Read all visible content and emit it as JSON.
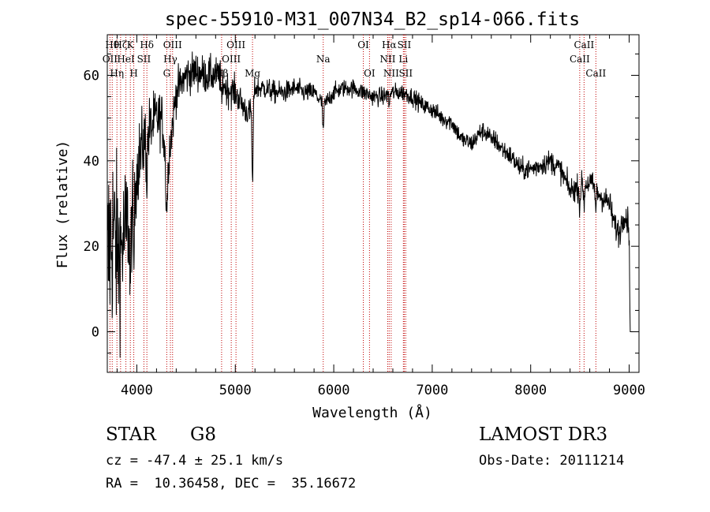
{
  "chart_data": {
    "type": "line",
    "title": "spec-55910-M31_007N34_B2_sp14-066.fits",
    "xlabel": "Wavelength (Å)",
    "ylabel": "Flux (relative)",
    "xlim": [
      3700,
      9100
    ],
    "ylim": [
      -9.5,
      69.5
    ],
    "x_ticks": [
      4000,
      5000,
      6000,
      7000,
      8000,
      9000
    ],
    "y_ticks": [
      0,
      20,
      40,
      60
    ],
    "x_tick_labels": [
      "4000",
      "5000",
      "6000",
      "7000",
      "8000",
      "9000"
    ],
    "y_tick_labels": [
      "0",
      "20",
      "40",
      "60"
    ],
    "grid": false,
    "series": [
      {
        "name": "flux",
        "anchors": [
          [
            3700,
            12
          ],
          [
            3720,
            20
          ],
          [
            3760,
            24
          ],
          [
            3800,
            18
          ],
          [
            3850,
            20
          ],
          [
            3900,
            25
          ],
          [
            3950,
            30
          ],
          [
            4000,
            38
          ],
          [
            4050,
            43
          ],
          [
            4100,
            46
          ],
          [
            4150,
            48
          ],
          [
            4200,
            50
          ],
          [
            4250,
            50
          ],
          [
            4300,
            43
          ],
          [
            4340,
            44
          ],
          [
            4400,
            56
          ],
          [
            4500,
            60
          ],
          [
            4600,
            61
          ],
          [
            4700,
            60
          ],
          [
            4800,
            60
          ],
          [
            4860,
            60
          ],
          [
            4900,
            57
          ],
          [
            5000,
            56
          ],
          [
            5100,
            52
          ],
          [
            5150,
            51
          ],
          [
            5200,
            57
          ],
          [
            5300,
            57
          ],
          [
            5400,
            56
          ],
          [
            5500,
            56
          ],
          [
            5600,
            57
          ],
          [
            5700,
            56
          ],
          [
            5800,
            56
          ],
          [
            5900,
            53
          ],
          [
            6000,
            56
          ],
          [
            6100,
            57
          ],
          [
            6200,
            57
          ],
          [
            6300,
            56
          ],
          [
            6400,
            55
          ],
          [
            6500,
            55
          ],
          [
            6600,
            56
          ],
          [
            6700,
            56
          ],
          [
            6800,
            55
          ],
          [
            6900,
            53
          ],
          [
            7000,
            52
          ],
          [
            7100,
            50
          ],
          [
            7200,
            49
          ],
          [
            7300,
            45
          ],
          [
            7400,
            44
          ],
          [
            7500,
            47
          ],
          [
            7600,
            46
          ],
          [
            7700,
            43
          ],
          [
            7800,
            41
          ],
          [
            7900,
            38
          ],
          [
            8000,
            38
          ],
          [
            8100,
            39
          ],
          [
            8200,
            40
          ],
          [
            8300,
            38
          ],
          [
            8400,
            33
          ],
          [
            8500,
            34
          ],
          [
            8600,
            35
          ],
          [
            8700,
            32
          ],
          [
            8800,
            30
          ],
          [
            8850,
            25
          ],
          [
            8900,
            23
          ],
          [
            8950,
            28
          ],
          [
            9000,
            25
          ]
        ],
        "dips": [
          {
            "center": 3934,
            "width": 10,
            "depth": 18
          },
          {
            "center": 3969,
            "width": 10,
            "depth": 16
          },
          {
            "center": 4102,
            "width": 8,
            "depth": 10
          },
          {
            "center": 4304,
            "width": 15,
            "depth": 14
          },
          {
            "center": 4861,
            "width": 8,
            "depth": 7
          },
          {
            "center": 5175,
            "width": 8,
            "depth": 20
          },
          {
            "center": 5893,
            "width": 8,
            "depth": 6
          },
          {
            "center": 6563,
            "width": 6,
            "depth": 3
          },
          {
            "center": 7600,
            "width": 12,
            "depth": 2
          },
          {
            "center": 8498,
            "width": 7,
            "depth": 5
          },
          {
            "center": 8542,
            "width": 7,
            "depth": 5
          },
          {
            "center": 8662,
            "width": 7,
            "depth": 5
          },
          {
            "center": 9010,
            "width": 8,
            "depth": 26
          }
        ],
        "noise": [
          [
            3700,
            20
          ],
          [
            3800,
            15
          ],
          [
            3900,
            11
          ],
          [
            4000,
            7
          ],
          [
            4200,
            5
          ],
          [
            4400,
            3.5
          ],
          [
            4800,
            3
          ],
          [
            5100,
            2.5
          ],
          [
            5200,
            2
          ],
          [
            6000,
            1.5
          ],
          [
            7000,
            1.5
          ],
          [
            8000,
            1.8
          ],
          [
            9000,
            2.5
          ]
        ]
      }
    ],
    "lines": [
      {
        "wave": 3727,
        "label": "OII",
        "row": 2
      },
      {
        "wave": 3750,
        "label": "Hθ",
        "row": 1
      },
      {
        "wave": 3798,
        "label": "Hη",
        "row": 3
      },
      {
        "wave": 3835,
        "label": "Hζ",
        "row": 1
      },
      {
        "wave": 3889,
        "label": "HeI",
        "row": 2
      },
      {
        "wave": 3934,
        "label": "K",
        "row": 1
      },
      {
        "wave": 3969,
        "label": "H",
        "row": 3
      },
      {
        "wave": 4072,
        "label": "SII",
        "row": 2
      },
      {
        "wave": 4102,
        "label": "Hδ",
        "row": 1
      },
      {
        "wave": 4304,
        "label": "G",
        "row": 3
      },
      {
        "wave": 4341,
        "label": "Hγ",
        "row": 2
      },
      {
        "wave": 4363,
        "label": "OIII",
        "row": 1
      },
      {
        "wave": 4861,
        "label": "Hβ",
        "row": 3
      },
      {
        "wave": 4959,
        "label": "OIII",
        "row": 2
      },
      {
        "wave": 5007,
        "label": "OIII",
        "row": 1
      },
      {
        "wave": 5175,
        "label": "Mg",
        "row": 3
      },
      {
        "wave": 5893,
        "label": "Na",
        "row": 2
      },
      {
        "wave": 6300,
        "label": "OI",
        "row": 1
      },
      {
        "wave": 6363,
        "label": "OI",
        "row": 3
      },
      {
        "wave": 6548,
        "label": "NII",
        "row": 2
      },
      {
        "wave": 6563,
        "label": "Hα",
        "row": 1
      },
      {
        "wave": 6583,
        "label": "NII",
        "row": 3
      },
      {
        "wave": 6707,
        "label": "Li",
        "row": 2
      },
      {
        "wave": 6716,
        "label": "SII",
        "row": 1
      },
      {
        "wave": 6731,
        "label": "SII",
        "row": 3
      },
      {
        "wave": 8498,
        "label": "CaII",
        "row": 2
      },
      {
        "wave": 8542,
        "label": "CaII",
        "row": 1
      },
      {
        "wave": 8662,
        "label": "CaII",
        "row": 3
      }
    ]
  },
  "info": {
    "class": "STAR",
    "subclass": "G8",
    "survey": "LAMOST DR3",
    "cz": "cz = -47.4 ± 25.1 km/s",
    "obs_date": "Obs-Date: 20111214",
    "radec": "RA =  10.36458, DEC =  35.16672"
  },
  "colors": {
    "line_marker": "#c00000",
    "spectrum": "#000000"
  }
}
